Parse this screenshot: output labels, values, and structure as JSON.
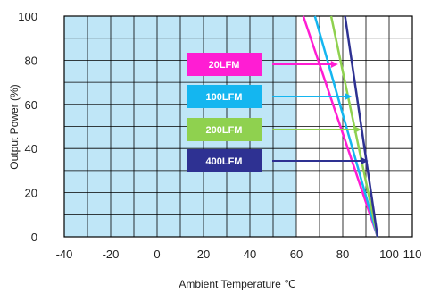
{
  "chart_data": {
    "type": "line",
    "xlabel": "Ambient Temperature ℃",
    "ylabel": "Output Power (%)",
    "xlim": [
      -40,
      110
    ],
    "ylim": [
      0,
      100
    ],
    "x_ticks": [
      -40,
      -20,
      0,
      20,
      40,
      60,
      80,
      90,
      100,
      110
    ],
    "x_tick_labels": [
      "-40",
      "-20",
      "0",
      "20",
      "40",
      "60",
      "80",
      "",
      "100",
      "110"
    ],
    "y_ticks": [
      0,
      20,
      40,
      60,
      80,
      100
    ],
    "grid": true,
    "shaded_region": {
      "x": [
        -40,
        60
      ],
      "color": "#bfe6f7"
    },
    "series": [
      {
        "name": "20LFM",
        "color": "#ff1dd3",
        "x": [
          63,
          95
        ],
        "y": [
          100,
          0
        ]
      },
      {
        "name": "100LFM",
        "color": "#14b6f0",
        "x": [
          68,
          95
        ],
        "y": [
          100,
          0
        ]
      },
      {
        "name": "200LFM",
        "color": "#8fd14f",
        "x": [
          75,
          95
        ],
        "y": [
          100,
          0
        ]
      },
      {
        "name": "400LFM",
        "color": "#2e3192",
        "x": [
          81,
          95
        ],
        "y": [
          100,
          0
        ]
      }
    ],
    "legend_placement": "center",
    "legend_arrow_targets": [
      {
        "name": "20LFM",
        "x": 78,
        "y": 77
      },
      {
        "name": "100LFM",
        "x": 84,
        "y": 63
      },
      {
        "name": "200LFM",
        "x": 88,
        "y": 48
      },
      {
        "name": "400LFM",
        "x": 91,
        "y": 35
      }
    ]
  }
}
